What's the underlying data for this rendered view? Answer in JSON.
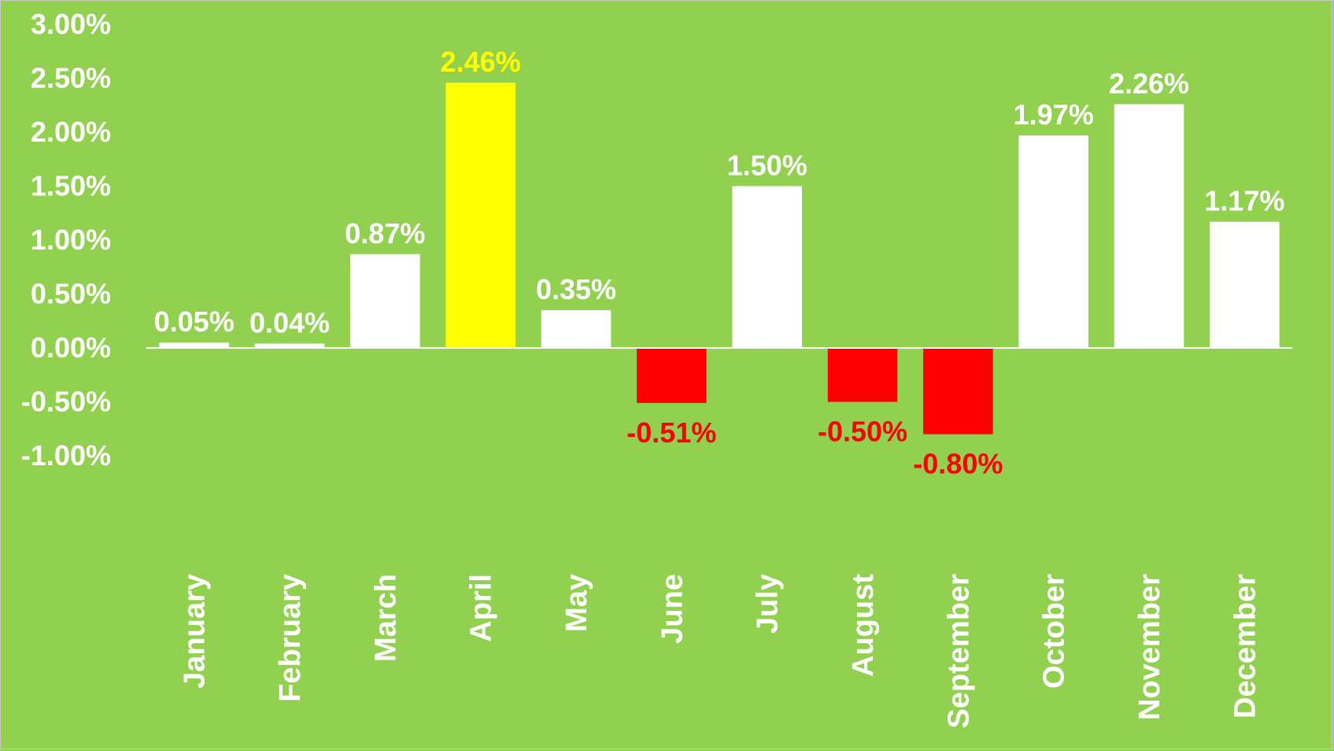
{
  "chart_data": {
    "type": "bar",
    "title": "",
    "xlabel": "",
    "ylabel": "",
    "ylim": [
      -1.0,
      3.0
    ],
    "grid": false,
    "legend": "none",
    "categories": [
      "January",
      "February",
      "March",
      "April",
      "May",
      "June",
      "July",
      "August",
      "September",
      "October",
      "November",
      "December"
    ],
    "values": [
      0.05,
      0.04,
      0.87,
      2.46,
      0.35,
      -0.51,
      1.5,
      -0.5,
      -0.8,
      1.97,
      2.26,
      1.17
    ],
    "value_labels": [
      "0.05%",
      "0.04%",
      "0.87%",
      "2.46%",
      "0.35%",
      "-0.51%",
      "1.50%",
      "-0.50%",
      "-0.80%",
      "1.97%",
      "2.26%",
      "1.17%"
    ],
    "y_ticks": [
      3.0,
      2.5,
      2.0,
      1.5,
      1.0,
      0.5,
      0.0,
      -0.5,
      -1.0
    ],
    "y_tick_labels": [
      "3.00%",
      "2.50%",
      "2.00%",
      "1.50%",
      "1.00%",
      "0.50%",
      "0.00%",
      "-0.50%",
      "-1.00%"
    ],
    "colors": {
      "background": "#92d050",
      "bar_default": "#ffffff",
      "bar_highlight": "#ffff00",
      "bar_negative": "#ff0000",
      "axis": "#ffffff"
    },
    "highlight_category": "April"
  }
}
